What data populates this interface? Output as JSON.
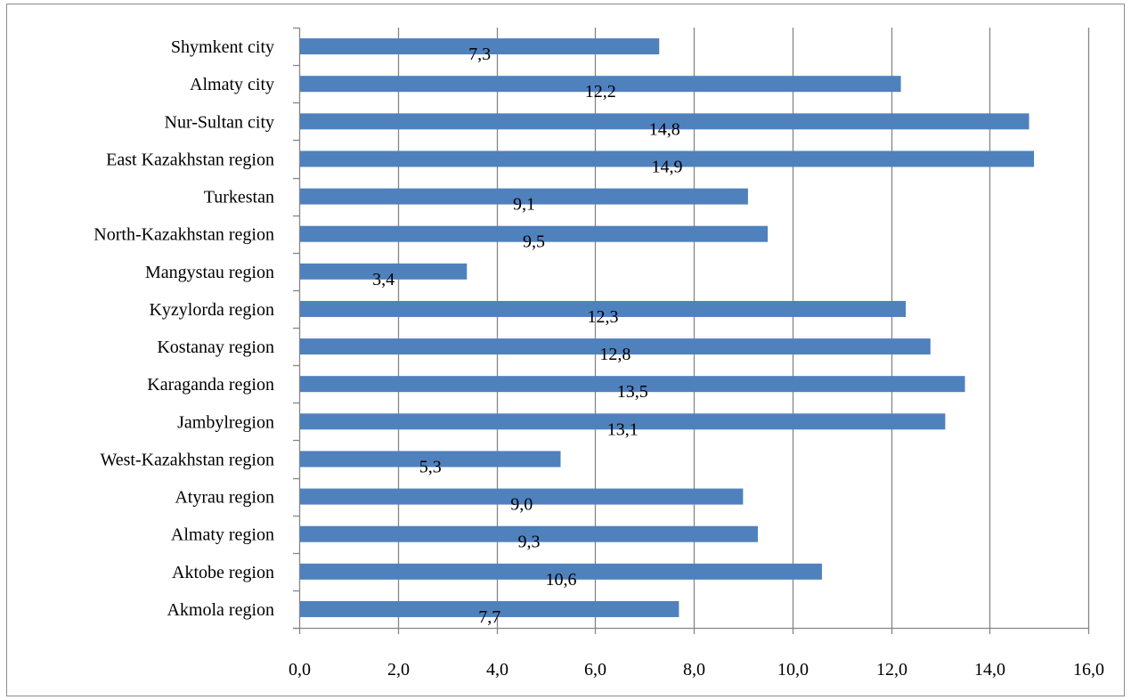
{
  "chart_data": {
    "type": "bar",
    "orientation": "horizontal",
    "title": "",
    "xlabel": "",
    "ylabel": "",
    "categories": [
      "Akmola region",
      "Aktobe region",
      "Almaty region",
      "Atyrau region",
      "West-Kazakhstan region",
      "Jambylregion",
      "Karaganda region",
      "Kostanay region",
      "Kyzylorda region",
      "Mangystau region",
      "North-Kazakhstan region",
      "Turkestan",
      "East Kazakhstan region",
      "Nur-Sultan city",
      "Almaty city",
      "Shymkent city"
    ],
    "values": [
      7.7,
      10.6,
      9.3,
      9.0,
      5.3,
      13.1,
      13.5,
      12.8,
      12.3,
      3.4,
      9.5,
      9.1,
      14.9,
      14.8,
      12.2,
      7.3
    ],
    "value_labels": [
      "7,7",
      "10,6",
      "9,3",
      "9,0",
      "5,3",
      "13,1",
      "13,5",
      "12,8",
      "12,3",
      "3,4",
      "9,5",
      "9,1",
      "14,9",
      "14,8",
      "12,2",
      "7,3"
    ],
    "xlim": [
      0,
      16
    ],
    "x_ticks": [
      "0,0",
      "2,0",
      "4,0",
      "6,0",
      "8,0",
      "10,0",
      "12,0",
      "14,0",
      "16,0"
    ],
    "grid": "vertical",
    "legend": "none",
    "colors": {
      "bar": "#4f81bd",
      "grid": "#868686",
      "axis": "#868686"
    }
  }
}
